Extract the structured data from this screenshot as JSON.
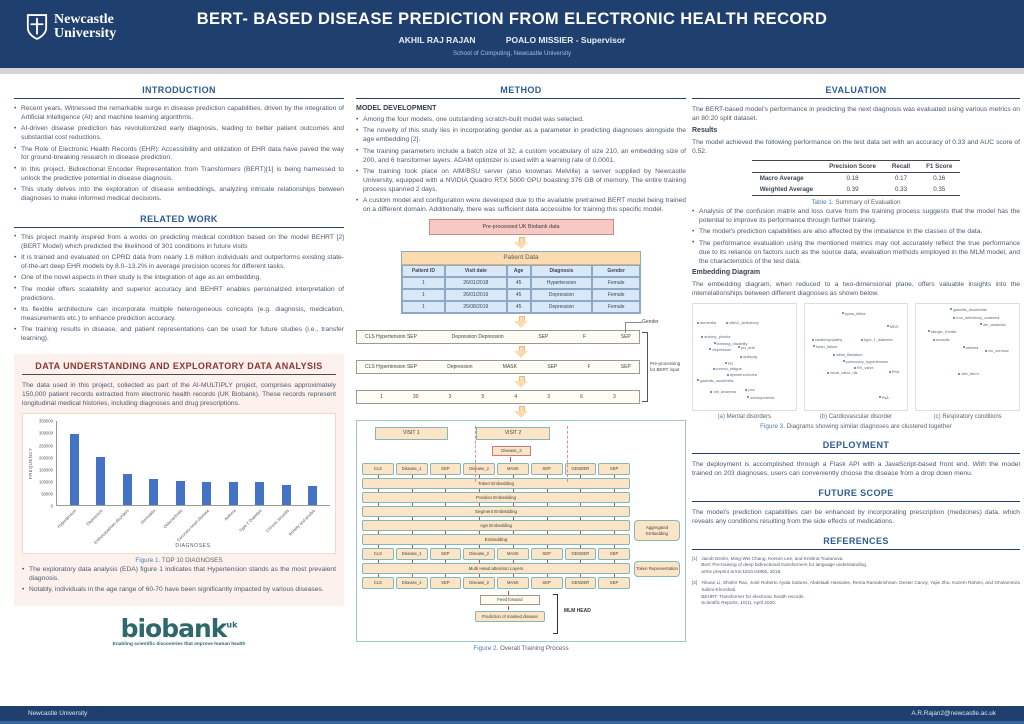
{
  "header": {
    "logo_line1": "Newcastle",
    "logo_line2": "University",
    "title": "BERT- BASED DISEASE PREDICTION FROM ELECTRONIC HEALTH RECORD",
    "author": "AKHIL RAJ RAJAN",
    "supervisor": "POALO MISSIER - Supervisor",
    "school": "School of Computing, Newcastle University"
  },
  "footer": {
    "left": "Newcastle University",
    "right": "A.R.Rajan2@newcastle.ac.uk"
  },
  "introduction": {
    "title": "INTRODUCTION",
    "bullets": [
      "Recent years, Witnessed the remarkable surge in disease prediction capabilities, driven by the integration of Artificial Intelligence (AI) and machine learning algorithms.",
      "AI-driven disease prediction has revolutionized early diagnosis, leading to better patient outcomes and substantial cost reductions.",
      "The Role of Electronic Health Records (EHR): Accessibility and utilization of EHR data have paved the way for ground-breaking research in disease prediction.",
      "In this project, Bidirectional Encoder Representation from Transformers (BERT)[1] is being harnessed to unlock the predictive potential in disease diagnosis.",
      "This study delves into the exploration of disease embeddings, analyzing intricate relationships between diagnoses to make informed medical decisions."
    ]
  },
  "related_work": {
    "title": "RELATED WORK",
    "bullets": [
      "This project mainly inspired from a works on predicting medical condition based on the model BEHRT [2] (BERT Model) which predicted the likelihood of 301 conditions in future visits",
      "It is trained and evaluated on CPRD data from nearly 1.6 million individuals and outperforms existing state-of-the-art deep EHR models by 8.0–13.2% in average precision scores for different tasks.",
      "One of the novel aspects in their study is the integration of age as an embedding.",
      "The model offers scalability and superior accuracy and BEHRT enables personalized interpretation of predictions.",
      "Its flexible architecture can incorporate multiple heterogeneous concepts (e.g. diagnosis, medication, measurements etc.) to enhance prediction accuracy.",
      "The training results in disease, and patient representations can be used for future studies (i.e., transfer learning)."
    ]
  },
  "eda": {
    "title": "DATA UNDERSTANDING AND EXPLORATORY DATA ANALYSIS",
    "intro": "The data used in this project, collected as part of the AI-MULTIPLY project, comprises approximately 150,000 patient records extracted from electronic health records (UK Biobank). These records represent longitudinal medical histories, including diagnoses and drug prescriptions.",
    "figure_caption_prefix": "Figure 1.",
    "figure_caption_rest": " TOP 10 DIAGNOSES",
    "bullets": [
      "The exploratory data analysis (EDA) figure 1 indicates that Hypertension stands as the most prevalent diagnosis.",
      "Notably, individuals in the age range of 60-70 have been significantly impacted by various diseases."
    ],
    "biobank": {
      "name": "biobank",
      "sup": "uk",
      "tagline": "Enabling scientific discoveries that improve human health"
    }
  },
  "chart_data": [
    {
      "type": "bar",
      "title": "Figure 1. TOP 10 DIAGNOSES",
      "categories": [
        "Hypertension",
        "Depression",
        "Enthesopathies disorders",
        "Dermatitis",
        "Osteoarthritis",
        "Coronary heart disease",
        "Asthma",
        "Type 2 Diabetes",
        "Chronic sinusitis",
        "Anxiety and phobia"
      ],
      "values": [
        295000,
        200000,
        130000,
        108000,
        99000,
        98000,
        96000,
        95000,
        83000,
        81000
      ],
      "xlabel": "DIAGNOSES",
      "ylabel": "FREQUENCY",
      "ylim": [
        0,
        350000
      ],
      "yticks": [
        0,
        50000,
        100000,
        150000,
        200000,
        250000,
        300000,
        350000
      ],
      "bar_color": "#4472c4",
      "grid": false,
      "legend": false
    },
    {
      "type": "scatter",
      "title_prefix": "(a)",
      "title": " Mental disorders",
      "points": [
        {
          "label": "dementia",
          "x": 4,
          "y": 16
        },
        {
          "label": "vitb12_deficiency",
          "x": 32,
          "y": 16
        },
        {
          "label": "anxiety_phobia",
          "x": 8,
          "y": 29
        },
        {
          "label": "learning_disability",
          "x": 20,
          "y": 35
        },
        {
          "label": "depression",
          "x": 16,
          "y": 41
        },
        {
          "label": "juv_arth",
          "x": 44,
          "y": 39
        },
        {
          "label": "epilepsy",
          "x": 46,
          "y": 48
        },
        {
          "label": "PD",
          "x": 31,
          "y": 54
        },
        {
          "label": "chronic_fatigue",
          "x": 19,
          "y": 59
        },
        {
          "label": "dysmenorrhoea",
          "x": 33,
          "y": 65
        },
        {
          "label": "gastritis_duodenitis",
          "x": 4,
          "y": 70
        },
        {
          "label": "oth_anaemia",
          "x": 17,
          "y": 81
        },
        {
          "label": "pcd",
          "x": 51,
          "y": 79
        },
        {
          "label": "schizophrenia",
          "x": 53,
          "y": 86
        }
      ]
    },
    {
      "type": "scatter",
      "title_prefix": "(b)",
      "title": " Cardiovascular disorder",
      "points": [
        {
          "label": "spina_bifida",
          "x": 36,
          "y": 7
        },
        {
          "label": "MDS",
          "x": 80,
          "y": 19
        },
        {
          "label": "cardiomyopathy",
          "x": 7,
          "y": 32
        },
        {
          "label": "type_1_diabetes",
          "x": 55,
          "y": 32
        },
        {
          "label": "heart_failure",
          "x": 8,
          "y": 38
        },
        {
          "label": "atrial_fibrilation",
          "x": 28,
          "y": 46
        },
        {
          "label": "pulmonary_hypertension",
          "x": 37,
          "y": 52
        },
        {
          "label": "RV_valve",
          "x": 48,
          "y": 58
        },
        {
          "label": "heart_valve_dis",
          "x": 22,
          "y": 63
        },
        {
          "label": "RhA",
          "x": 82,
          "y": 62
        },
        {
          "label": "PsA",
          "x": 72,
          "y": 86
        }
      ]
    },
    {
      "type": "scatter",
      "title_prefix": "(c)",
      "title": " Respiratory conditions",
      "points": [
        {
          "label": "gastritis_duodenitis",
          "x": 33,
          "y": 3
        },
        {
          "label": "iron_deficiency_anaemia",
          "x": 36,
          "y": 11
        },
        {
          "label": "oth_anaemia",
          "x": 62,
          "y": 17
        },
        {
          "label": "allergic_rhinitis",
          "x": 11,
          "y": 24
        },
        {
          "label": "sinusitis",
          "x": 16,
          "y": 32
        },
        {
          "label": "asthma",
          "x": 45,
          "y": 39
        },
        {
          "label": "cin_cervical",
          "x": 67,
          "y": 42
        },
        {
          "label": "seb_derm",
          "x": 41,
          "y": 64
        }
      ]
    }
  ],
  "method": {
    "title": "METHOD",
    "subheading": "MODEL DEVELOPMENT",
    "bullets": [
      "Among the four models, one outstanding scratch-built model was selected.",
      "The novelty of this study lies in incorporating gender as a parameter in predicting diagnoses alongside the age embedding [2].",
      "The training parameters include a batch size of 32, a custom vocabulary of size 210, an embedding size of 200, and 6 transformer layers. ADAM optimizer is used with a learning rate of 0.0001.",
      "The training took place on AIM/BSU server (also knownas Melville) a server supplied by Newcastle University, equipped with a NVIDIA Quadro RTX 5000 GPU boasting 376 GB of memory. The entire training process spanned 2 days.",
      "A custom model and configuration were developed due to the available pretrained BERT model being trained on a different domain. Additionally, there was sufficient data accessible for training this specific model."
    ],
    "flow": {
      "source_box": "Pre-processed UK Biobank data",
      "patient_table": {
        "title": "Patient Data",
        "headers": [
          "Patient ID",
          "Visit date",
          "Age",
          "Diagnosis",
          "Gender"
        ],
        "rows": [
          [
            "1",
            "26/01/2018",
            "45",
            "Hypertension",
            "Female"
          ],
          [
            "1",
            "26/01/2019",
            "45",
            "Depression",
            "Female"
          ],
          [
            "1",
            "25/08/2019",
            "45",
            "Depression",
            "Female"
          ]
        ]
      },
      "gender_label": "Gender",
      "token_row1": [
        "CLS Hypertension SEP",
        "Depression Depression",
        "SEP",
        "F",
        "SEP"
      ],
      "token_row2": [
        "CLS Hypertension SEP",
        "Depression",
        "MASK",
        "SEP",
        "F",
        "SEP"
      ],
      "ids_row": [
        "1",
        "30",
        "3",
        "5",
        "4",
        "3",
        "6",
        "3"
      ],
      "preprocess_label": "Pre-processing for BERT input"
    },
    "training_diagram": {
      "visit1": "VISIT 1",
      "visit2": "VISIT 2",
      "disease3": "Disease_3",
      "tokens": [
        "CLS",
        "Disease_1",
        "SEP",
        "Disease_2",
        "MASK",
        "SEP",
        "GENDER",
        "SEP"
      ],
      "bands": [
        "Token Embedding",
        "Position Embedding",
        "Segment Embedding",
        "Age Embedding",
        "Embedding"
      ],
      "attention_band": "Multi Head attention Layers",
      "aggregated": "Aggregated Embedding",
      "token_representation": "Token Representation",
      "feed_forward": "Feed forward",
      "prediction": "Prediction of masked disease",
      "mlm_head": "MLM HEAD"
    },
    "figure_caption_prefix": "Figure 2.",
    "figure_caption_rest": " Overall Training Process"
  },
  "evaluation": {
    "title": "EVALUATION",
    "intro": "The BERT-based model's performance in predicting the next diagnosis was evaluated using various metrics on an 80:20 split dataset.",
    "results_heading": "Results",
    "results_text": "The model achieved the following performance on the test data set with an accuracy of 0.33 and AUC score of 0.52.",
    "table": {
      "headers": [
        "",
        "Precision Score",
        "Recall",
        "F1 Score"
      ],
      "rows": [
        [
          "Macro Average",
          "0.18",
          "0.17",
          "0.16"
        ],
        [
          "Weighted Average",
          "0.39",
          "0.33",
          "0.35"
        ]
      ]
    },
    "table_caption_prefix": "Table 1.",
    "table_caption_rest": " Summary of Evaluation",
    "bullets": [
      "Analysis of the confusion matrix and loss curve from the training process suggests that the model has the potential to improve its performance through further training.",
      "The model's prediction capabilities are also affected by the imbalance in the classes of the data.",
      "The performance evaluation using the mentioned metrics may not accurately reflect the true performance due to its reliance on factors such as the source data, evaluation methods employed in the MLM model, and the characteristics of the test data."
    ],
    "embedding_heading": "Embedding Diagram",
    "embedding_text": "The embedding diagram, when reduced to a two-dimensional plane, offers valuable insights into the interrelationships between different diagnoses as shown below.",
    "figure_caption_prefix": "Figure 3.",
    "figure_caption_rest": " Diagrams showing similar diagnoses are clustered together"
  },
  "deployment": {
    "title": "DEPLOYMENT",
    "text": "The deployment is accomplished through a Flask API with a JavaScript-based front end. With the model trained on 203 diagnoses, users can conveniently choose the disease from a drop down menu."
  },
  "future_scope": {
    "title": "FUTURE SCOPE",
    "text": "The model's prediction capabilities can be enhanced by incorporating prescription (medicines) data, which reveals any conditions resulting from the side effects of medications."
  },
  "references": {
    "title": "REFERENCES",
    "items": [
      {
        "num": "[1]",
        "lines": [
          "Jacob Devlin, Ming-Wei Chang, Kenton Lee, and Kristina Toutanova.",
          "Bert: Pre-training of deep bidirectional transformers for language understanding.",
          "arXiv preprint arXiv:1810.04805, 2019."
        ]
      },
      {
        "num": "[2]",
        "lines": [
          "Yikuan Li, Shishir Rao, José Roberto Ayala Solares, Abdelaali Hassaine, Rema Ramakrishnan, Dexter Canoy, Yajie Zhu, Kazem Rahimi, and Gholamreza Salimi-Khorshidi.",
          "BEHRT: Transformer for electronic health records.",
          "Scientific Reports, 10(1), April 2020."
        ]
      }
    ]
  }
}
